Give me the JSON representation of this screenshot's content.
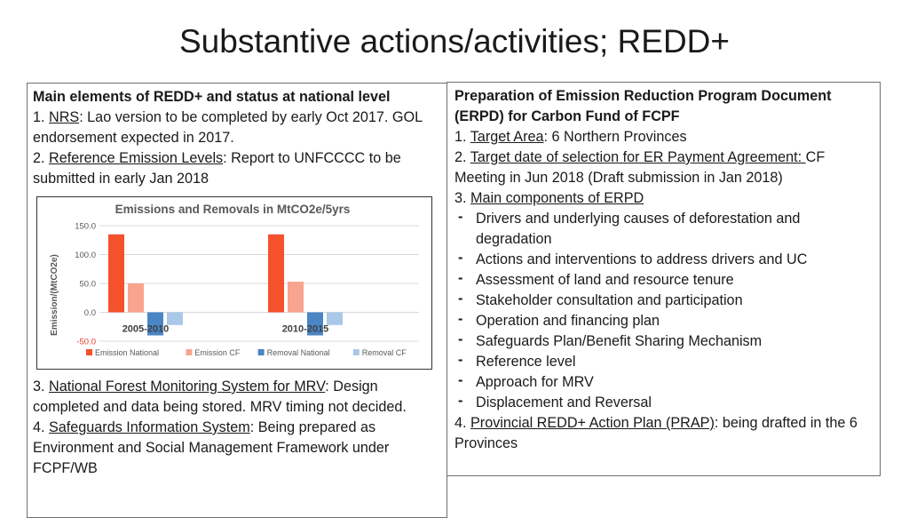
{
  "slide": {
    "title": "Substantive actions/activities; REDD+"
  },
  "left": {
    "heading": "Main elements of REDD+ and status at national level",
    "items": [
      {
        "num": "1. ",
        "label": "NRS",
        "text": ": Lao version to be completed by early Oct 2017. GOL endorsement expected in 2017."
      },
      {
        "num": "2. ",
        "label": "Reference Emission Levels",
        "text": ": Report  to UNFCCCC  to be submitted in early Jan 2018"
      },
      {
        "num": "3. ",
        "label": "National Forest Monitoring System for MRV",
        "text": ": Design completed and data being stored. MRV timing not decided."
      },
      {
        "num": "4. ",
        "label": "Safeguards Information System",
        "text": ": Being prepared as Environment and Social Management Framework under FCPF/WB"
      }
    ]
  },
  "right": {
    "heading": "Preparation of Emission Reduction Program Document (ERPD) for Carbon Fund of FCPF",
    "item1": {
      "num": "1. ",
      "label": "Target Area",
      "text": ": 6 Northern Provinces"
    },
    "item2": {
      "num": "2. ",
      "label": "Target date of selection for ER Payment Agreement: ",
      "text": "CF Meeting in Jun 2018 (Draft submission in Jan 2018)"
    },
    "item3": {
      "num": "3. ",
      "label": "Main components of ERPD"
    },
    "bullets": [
      "Drivers and underlying causes of deforestation and degradation",
      "Actions and interventions to address drivers and UC",
      "Assessment of land and resource tenure",
      "Stakeholder consultation and participation",
      "Operation and financing plan",
      "Safeguards Plan/Benefit Sharing Mechanism",
      "Reference level",
      "Approach for MRV",
      "Displacement and Reversal"
    ],
    "item4": {
      "num": "4. ",
      "label": "Provincial REDD+ Action Plan (PRAP)",
      "text": ": being drafted in the 6 Provinces"
    }
  },
  "chart_data": {
    "type": "bar",
    "title": "Emissions and Removals in MtCO2e/5yrs",
    "ylabel": "Emission/(MtCO2e)",
    "xlabel": "",
    "categories": [
      "2005-2010",
      "2010-2015"
    ],
    "ylim": [
      -50,
      150
    ],
    "yticks": [
      "150.0",
      "100.0",
      "50.0",
      "0.0",
      "-50.0"
    ],
    "ytick_values": [
      150,
      100,
      50,
      0,
      -50
    ],
    "grid": true,
    "legend_position": "bottom",
    "series": [
      {
        "name": "Emission National",
        "color": "#F4512C",
        "values": [
          135,
          135
        ]
      },
      {
        "name": "Emission CF",
        "color": "#F8A48E",
        "values": [
          50,
          53
        ]
      },
      {
        "name": "Removal National",
        "color": "#4A86C5",
        "values": [
          -40,
          -40
        ]
      },
      {
        "name": "Removal CF",
        "color": "#A9C8E8",
        "values": [
          -22,
          -22
        ]
      }
    ]
  }
}
